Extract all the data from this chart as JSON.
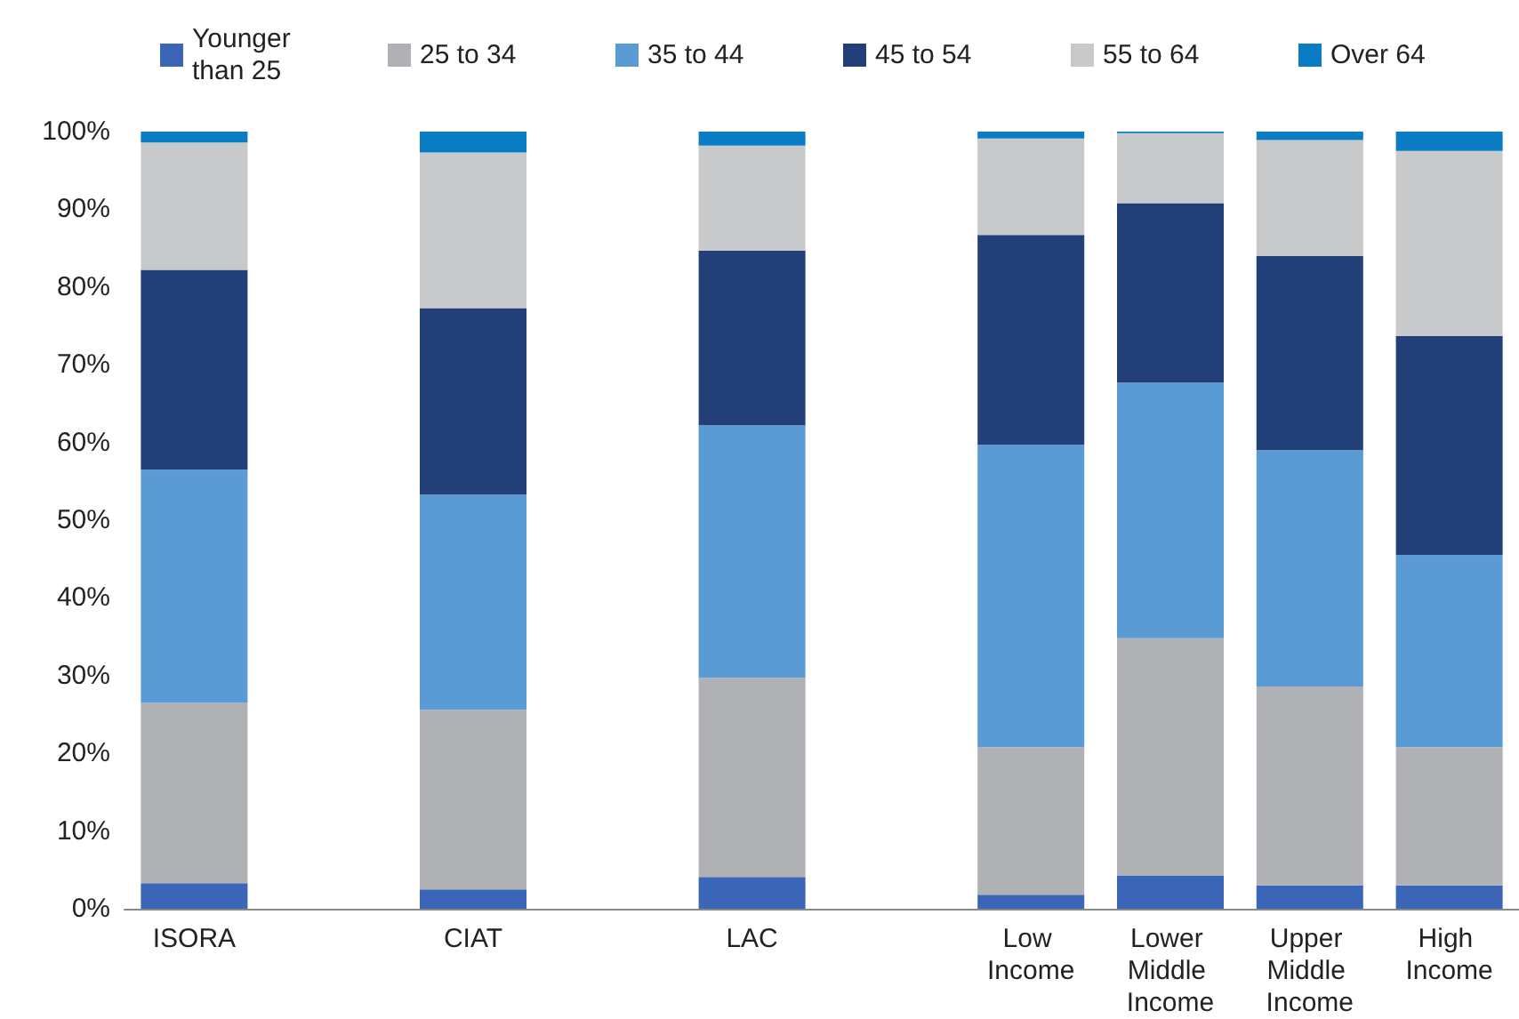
{
  "chart_data": {
    "type": "bar",
    "stacked": true,
    "categories": [
      "ISORA",
      null,
      "CIAT",
      null,
      "LAC",
      null,
      "Low Income",
      "Lower Middle Income",
      "Upper Middle Income",
      "High Income"
    ],
    "series": [
      {
        "name": "Younger than 25",
        "color": "#3b66b8",
        "values": [
          3.3,
          null,
          2.5,
          null,
          4.1,
          null,
          1.8,
          4.3,
          3.0,
          3.0
        ]
      },
      {
        "name": "25 to 34",
        "color": "#b0b1b4",
        "values": [
          23.2,
          null,
          23.1,
          null,
          25.6,
          null,
          19.0,
          30.5,
          25.6,
          17.8
        ]
      },
      {
        "name": "35 to 44",
        "color": "#5b9bd5",
        "values": [
          30.0,
          null,
          27.7,
          null,
          32.5,
          null,
          38.9,
          32.9,
          30.4,
          24.7
        ]
      },
      {
        "name": "45 to 54",
        "color": "#223f77",
        "values": [
          25.7,
          null,
          24.0,
          null,
          22.5,
          null,
          27.0,
          23.1,
          25.0,
          28.2
        ]
      },
      {
        "name": "55 to 64",
        "color": "#c8c9cb",
        "values": [
          16.4,
          null,
          20.0,
          null,
          13.5,
          null,
          12.4,
          9.0,
          14.9,
          23.8
        ]
      },
      {
        "name": "Over 64",
        "color": "#0a7cc4",
        "values": [
          1.4,
          null,
          2.7,
          null,
          1.8,
          null,
          0.9,
          0.2,
          1.1,
          2.5
        ]
      }
    ],
    "ylim": [
      0,
      100
    ],
    "yticks": [
      {
        "value": 0,
        "label": "0%"
      },
      {
        "value": 10,
        "label": "10%"
      },
      {
        "value": 20,
        "label": "20%"
      },
      {
        "value": 30,
        "label": "30%"
      },
      {
        "value": 40,
        "label": "40%"
      },
      {
        "value": 50,
        "label": "50%"
      },
      {
        "value": 60,
        "label": "60%"
      },
      {
        "value": 70,
        "label": "70%"
      },
      {
        "value": 80,
        "label": "80%"
      },
      {
        "value": 90,
        "label": "90%"
      },
      {
        "value": 100,
        "label": "100%"
      }
    ],
    "grid": false,
    "legend": "top"
  }
}
